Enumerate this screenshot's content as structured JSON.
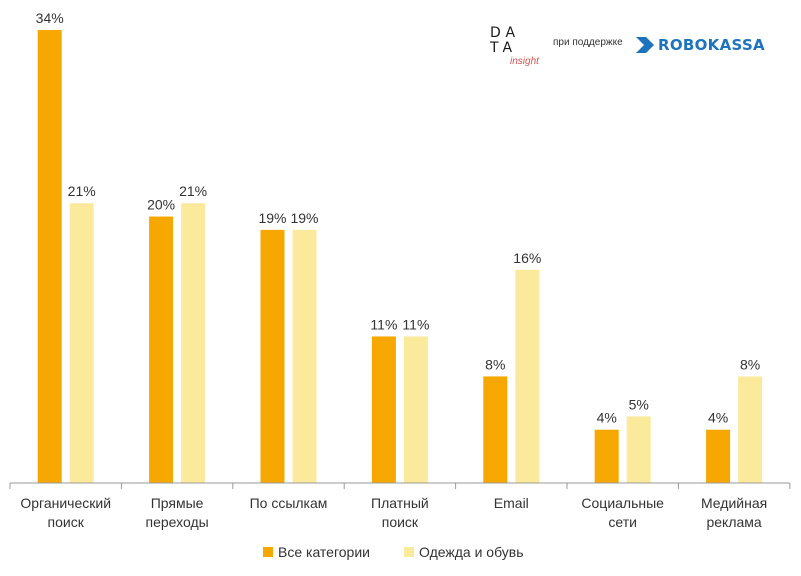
{
  "header": {
    "logo_line1": "DA",
    "logo_line2": "TA",
    "logo_sub": "insight",
    "support_text": "при поддержке",
    "partner": "ROBOKASSA"
  },
  "colors": {
    "series1": "#f6a800",
    "series2": "#fcea9c",
    "axis": "#9a9a9a",
    "robokassa": "#1e73be"
  },
  "chart_data": {
    "type": "bar",
    "categories": [
      [
        "Органический",
        "поиск"
      ],
      [
        "Прямые",
        "переходы"
      ],
      [
        "По ссылкам"
      ],
      [
        "Платный",
        "поиск"
      ],
      [
        "Email"
      ],
      [
        "Социальные",
        "сети"
      ],
      [
        "Медийная",
        "реклама"
      ]
    ],
    "series": [
      {
        "name": "Все категории",
        "values": [
          34,
          20,
          19,
          11,
          8,
          4,
          4
        ]
      },
      {
        "name": "Одежда и обувь",
        "values": [
          21,
          21,
          19,
          11,
          16,
          5,
          8
        ]
      }
    ],
    "data_labels": [
      [
        "34%",
        "20%",
        "19%",
        "11%",
        "8%",
        "4%",
        "4%"
      ],
      [
        "21%",
        "21%",
        "19%",
        "11%",
        "16%",
        "5%",
        "8%"
      ]
    ],
    "ylim": [
      0,
      34
    ],
    "grid": false,
    "legend": "bottom"
  }
}
